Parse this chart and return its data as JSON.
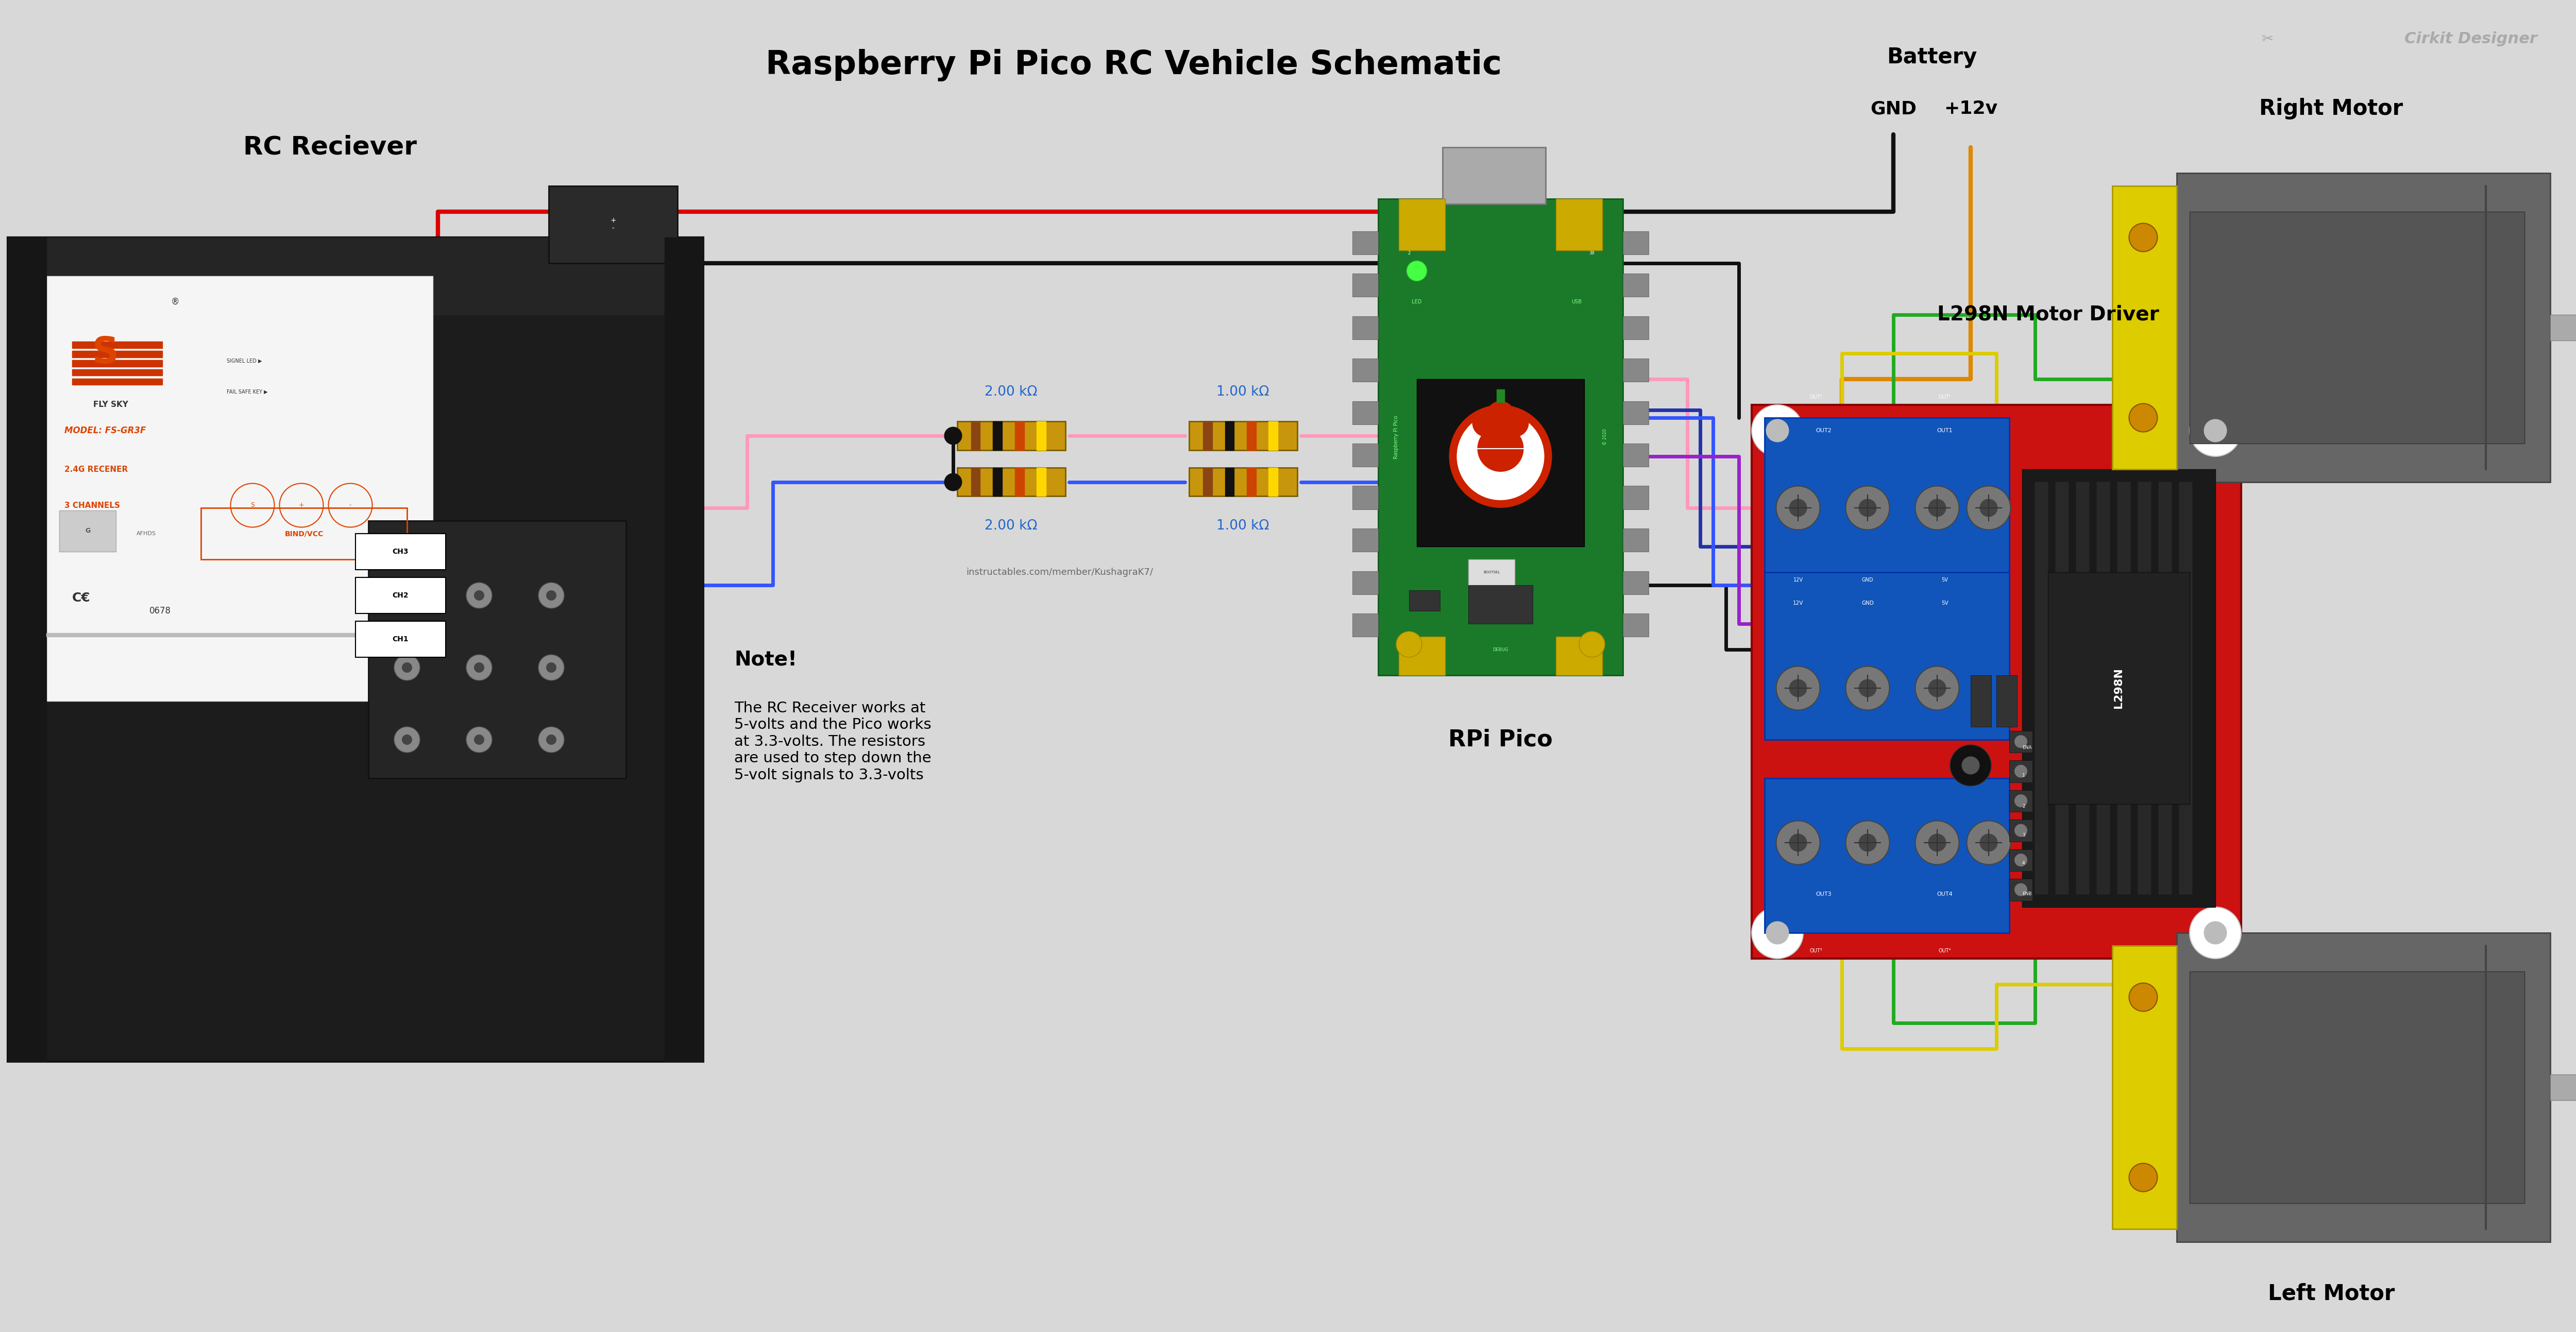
{
  "title": "Raspberry Pi Pico RC Vehicle Schematic",
  "bg_color": "#d8d8d8",
  "label_rc_receiver": "RC Reciever",
  "label_rpi_pico": "RPi Pico",
  "label_motor_driver": "L298N Motor Driver",
  "label_right_motor": "Right Motor",
  "label_left_motor": "Left Motor",
  "label_battery": "Battery",
  "label_gnd": "GND",
  "label_12v": "+12v",
  "label_cirkit": "Cirkit Designer",
  "note_title": "Note!",
  "note_text": "The RC Receiver works at\n5-volts and the Pico works\nat 3.3-volts. The resistors\nare used to step down the\n5-volt signals to 3.3-volts",
  "resistor1_label": "2.00 kΩ",
  "resistor2_label": "1.00 kΩ",
  "resistor3_label": "2.00 kΩ",
  "resistor4_label": "1.00 kΩ",
  "watermark": "instructables.com/member/KushagraK7/"
}
